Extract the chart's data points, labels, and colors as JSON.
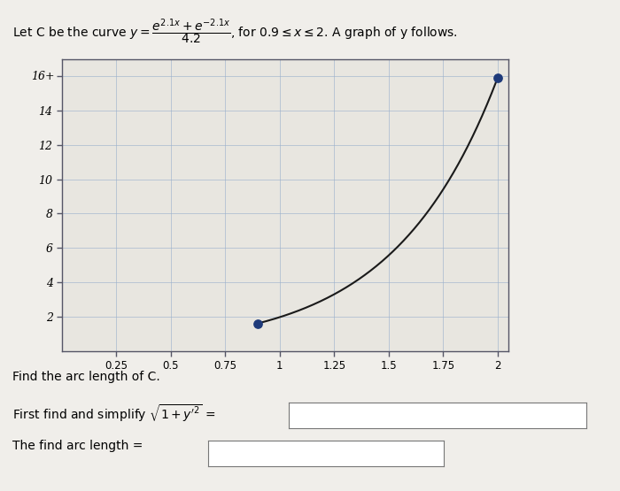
{
  "x_start": 0.9,
  "x_end": 2.0,
  "coeff": 2.1,
  "denom": 4.2,
  "xlim": [
    0.0,
    2.05
  ],
  "ylim": [
    0.0,
    17.0
  ],
  "xticks": [
    0.25,
    0.5,
    0.75,
    1.0,
    1.25,
    1.5,
    1.75,
    2.0
  ],
  "xtick_labels": [
    "0.25",
    "0.5",
    "0.75",
    "1",
    "1.25",
    "1.5",
    "1.75",
    "2"
  ],
  "yticks": [
    2,
    4,
    6,
    8,
    10,
    12,
    14,
    16
  ],
  "ytick_labels": [
    "2",
    "4",
    "6",
    "8",
    "10",
    "12",
    "14",
    "16"
  ],
  "curve_color": "#1a1a1a",
  "dot_color": "#1e3a7a",
  "dot_size": 45,
  "figure_bg": "#f0eeea",
  "axes_bg": "#e8e6e0",
  "grid_color": "#9ab0cc",
  "grid_alpha": 0.7,
  "grid_linewidth": 0.6,
  "spine_color": "#555566",
  "text_below_1": "Find the arc length of C.",
  "text_below_2": "First find and simplify $\\sqrt{1+y^{\\prime 2}}$ =",
  "text_below_3": "The find arc length ="
}
